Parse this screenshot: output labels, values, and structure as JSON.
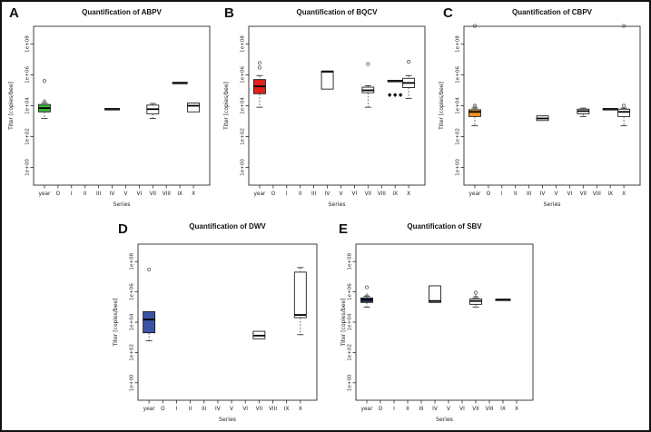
{
  "figure": {
    "background_color": "#ffffff",
    "border_color": "#111111",
    "description_colors": {
      "abpv_green": "#3db33d",
      "bqcv_red": "#e3201c",
      "cbpv_orange": "#f7941e",
      "dwv_blue": "#3a53a4",
      "sbv_navy": "#2b3566"
    }
  },
  "chart_data": [
    {
      "type": "box",
      "panel": "A",
      "title": "Quantification of ABPV",
      "xlabel": "Series",
      "ylabel": "Titer [copies/bee]",
      "y_scale": "log10",
      "ylim_log10": [
        -1.15,
        9.15
      ],
      "y_ticks": [
        "1e+00",
        "1e+02",
        "1e+04",
        "1e+06",
        "1e+08"
      ],
      "y_tick_exponents": [
        0,
        2,
        4,
        6,
        8
      ],
      "categories": [
        "year",
        "O",
        "I",
        "II",
        "III",
        "IV",
        "V",
        "VI",
        "VII",
        "VIII",
        "IX",
        "X"
      ],
      "boxes": [
        {
          "category": "year",
          "fill": "#3db33d",
          "q1": 4000,
          "median": 7000,
          "q3": 12000,
          "whisker_low": 1500,
          "whisker_high": 15000,
          "mean_markers": [
            20000
          ],
          "outliers": [
            400000
          ]
        },
        {
          "category": "IV",
          "flat_value": 6000
        },
        {
          "category": "VII",
          "fill": "#ffffff",
          "q1": 3000,
          "median": 6000,
          "q3": 11000,
          "whisker_low": 1500,
          "whisker_high": 14000
        },
        {
          "category": "IX",
          "flat_value": 300000
        },
        {
          "category": "X",
          "fill": "#ffffff",
          "q1": 4000,
          "median": 10000,
          "q3": 15000
        }
      ]
    },
    {
      "type": "box",
      "panel": "B",
      "title": "Quantification of BQCV",
      "xlabel": "Series",
      "ylabel": "Titer [copies/bee]",
      "y_scale": "log10",
      "ylim_log10": [
        -1.15,
        9.15
      ],
      "y_ticks": [
        "1e+00",
        "1e+02",
        "1e+04",
        "1e+06",
        "1e+08"
      ],
      "y_tick_exponents": [
        0,
        2,
        4,
        6,
        8
      ],
      "categories": [
        "year",
        "O",
        "I",
        "II",
        "III",
        "IV",
        "V",
        "VI",
        "VII",
        "VIII",
        "IX",
        "X"
      ],
      "boxes": [
        {
          "category": "year",
          "fill": "#e3201c",
          "q1": 60000,
          "median": 180000,
          "q3": 500000,
          "whisker_low": 8000,
          "whisker_high": 900000,
          "outliers": [
            3000000,
            6000000
          ]
        },
        {
          "category": "IV",
          "fill": "#ffffff",
          "q1": 120000,
          "median": 1600000,
          "q3": 1800000
        },
        {
          "category": "VII",
          "fill": "#ffffff",
          "q1": 70000,
          "median": 100000,
          "q3": 160000,
          "whisker_low": 8000,
          "whisker_high": 200000,
          "outliers": [
            5000000
          ]
        },
        {
          "category": "IX",
          "flat_value": 400000,
          "diamond_markers": {
            "value": 50000,
            "count": 3
          }
        },
        {
          "category": "X",
          "fill": "#ffffff",
          "q1": 150000,
          "median": 300000,
          "q3": 600000,
          "whisker_low": 30000,
          "whisker_high": 900000,
          "outliers": [
            7000000
          ]
        }
      ]
    },
    {
      "type": "box",
      "panel": "C",
      "title": "Quantification of CBPV",
      "xlabel": "Series",
      "ylabel": "Titer [copies/bee]",
      "y_scale": "log10",
      "ylim_log10": [
        -1.15,
        9.15
      ],
      "y_ticks": [
        "1e+00",
        "1e+02",
        "1e+04",
        "1e+06",
        "1e+08"
      ],
      "y_tick_exponents": [
        0,
        2,
        4,
        6,
        8
      ],
      "categories": [
        "year",
        "O",
        "I",
        "II",
        "III",
        "IV",
        "V",
        "VI",
        "VII",
        "VIII",
        "IX",
        "X"
      ],
      "boxes": [
        {
          "category": "year",
          "fill": "#f7941e",
          "q1": 2000,
          "median": 4000,
          "q3": 5500,
          "whisker_low": 500,
          "whisker_high": 7000,
          "mean_markers": [
            8000
          ],
          "outliers": [
            10000,
            1500000000
          ]
        },
        {
          "category": "IV",
          "fill": "#ffffff",
          "q1": 1100,
          "median": 1500,
          "q3": 2200
        },
        {
          "category": "VII",
          "fill": "#ffffff",
          "q1": 3000,
          "median": 4500,
          "q3": 6000,
          "whisker_low": 2000,
          "whisker_high": 7000
        },
        {
          "category": "IX",
          "flat_value": 6000
        },
        {
          "category": "X",
          "fill": "#ffffff",
          "q1": 2000,
          "median": 4000,
          "q3": 6000,
          "whisker_low": 500,
          "whisker_high": 7000,
          "outliers": [
            10000,
            1500000000
          ]
        }
      ]
    },
    {
      "type": "box",
      "panel": "D",
      "title": "Quantification of DWV",
      "xlabel": "Series",
      "ylabel": "Titer [copies/bee]",
      "y_scale": "log10",
      "ylim_log10": [
        -1.15,
        9.15
      ],
      "y_ticks": [
        "1e+00",
        "1e+02",
        "1e+04",
        "1e+06",
        "1e+08"
      ],
      "y_tick_exponents": [
        0,
        2,
        4,
        6,
        8
      ],
      "categories": [
        "year",
        "O",
        "I",
        "II",
        "III",
        "IV",
        "V",
        "VI",
        "VII",
        "VIII",
        "IX",
        "X"
      ],
      "boxes": [
        {
          "category": "year",
          "fill": "#3a53a4",
          "q1": 2000,
          "median": 15000,
          "q3": 50000,
          "whisker_low": 600,
          "outliers": [
            30000000
          ]
        },
        {
          "category": "VII",
          "fill": "#ffffff",
          "q1": 800,
          "median": 1300,
          "q3": 2500
        },
        {
          "category": "X",
          "fill": "#ffffff",
          "q1": 20000,
          "median": 30000,
          "q3": 20000000,
          "whisker_low": 1500,
          "whisker_high": 40000000
        }
      ]
    },
    {
      "type": "box",
      "panel": "E",
      "title": "Quantification of SBV",
      "xlabel": "Series",
      "ylabel": "Titer [copies/bee]",
      "y_scale": "log10",
      "ylim_log10": [
        -1.15,
        9.15
      ],
      "y_ticks": [
        "1e+00",
        "1e+02",
        "1e+04",
        "1e+06",
        "1e+08"
      ],
      "y_tick_exponents": [
        0,
        2,
        4,
        6,
        8
      ],
      "categories": [
        "year",
        "O",
        "I",
        "II",
        "III",
        "IV",
        "V",
        "VI",
        "VII",
        "VIII",
        "IX",
        "X"
      ],
      "boxes": [
        {
          "category": "year",
          "fill": "#2b3566",
          "q1": 200000,
          "median": 300000,
          "q3": 400000,
          "whisker_low": 100000,
          "whisker_high": 500000,
          "mean_markers": [
            600000
          ],
          "outliers": [
            2000000
          ]
        },
        {
          "category": "IV",
          "fill": "#ffffff",
          "q1": 200000,
          "median": 250000,
          "q3": 2500000
        },
        {
          "category": "VII",
          "fill": "#ffffff",
          "q1": 150000,
          "median": 250000,
          "q3": 350000,
          "whisker_low": 100000,
          "whisker_high": 400000,
          "mean_markers": [
            500000
          ],
          "outliers": [
            900000
          ]
        },
        {
          "category": "IX",
          "flat_value": 300000
        }
      ]
    }
  ]
}
